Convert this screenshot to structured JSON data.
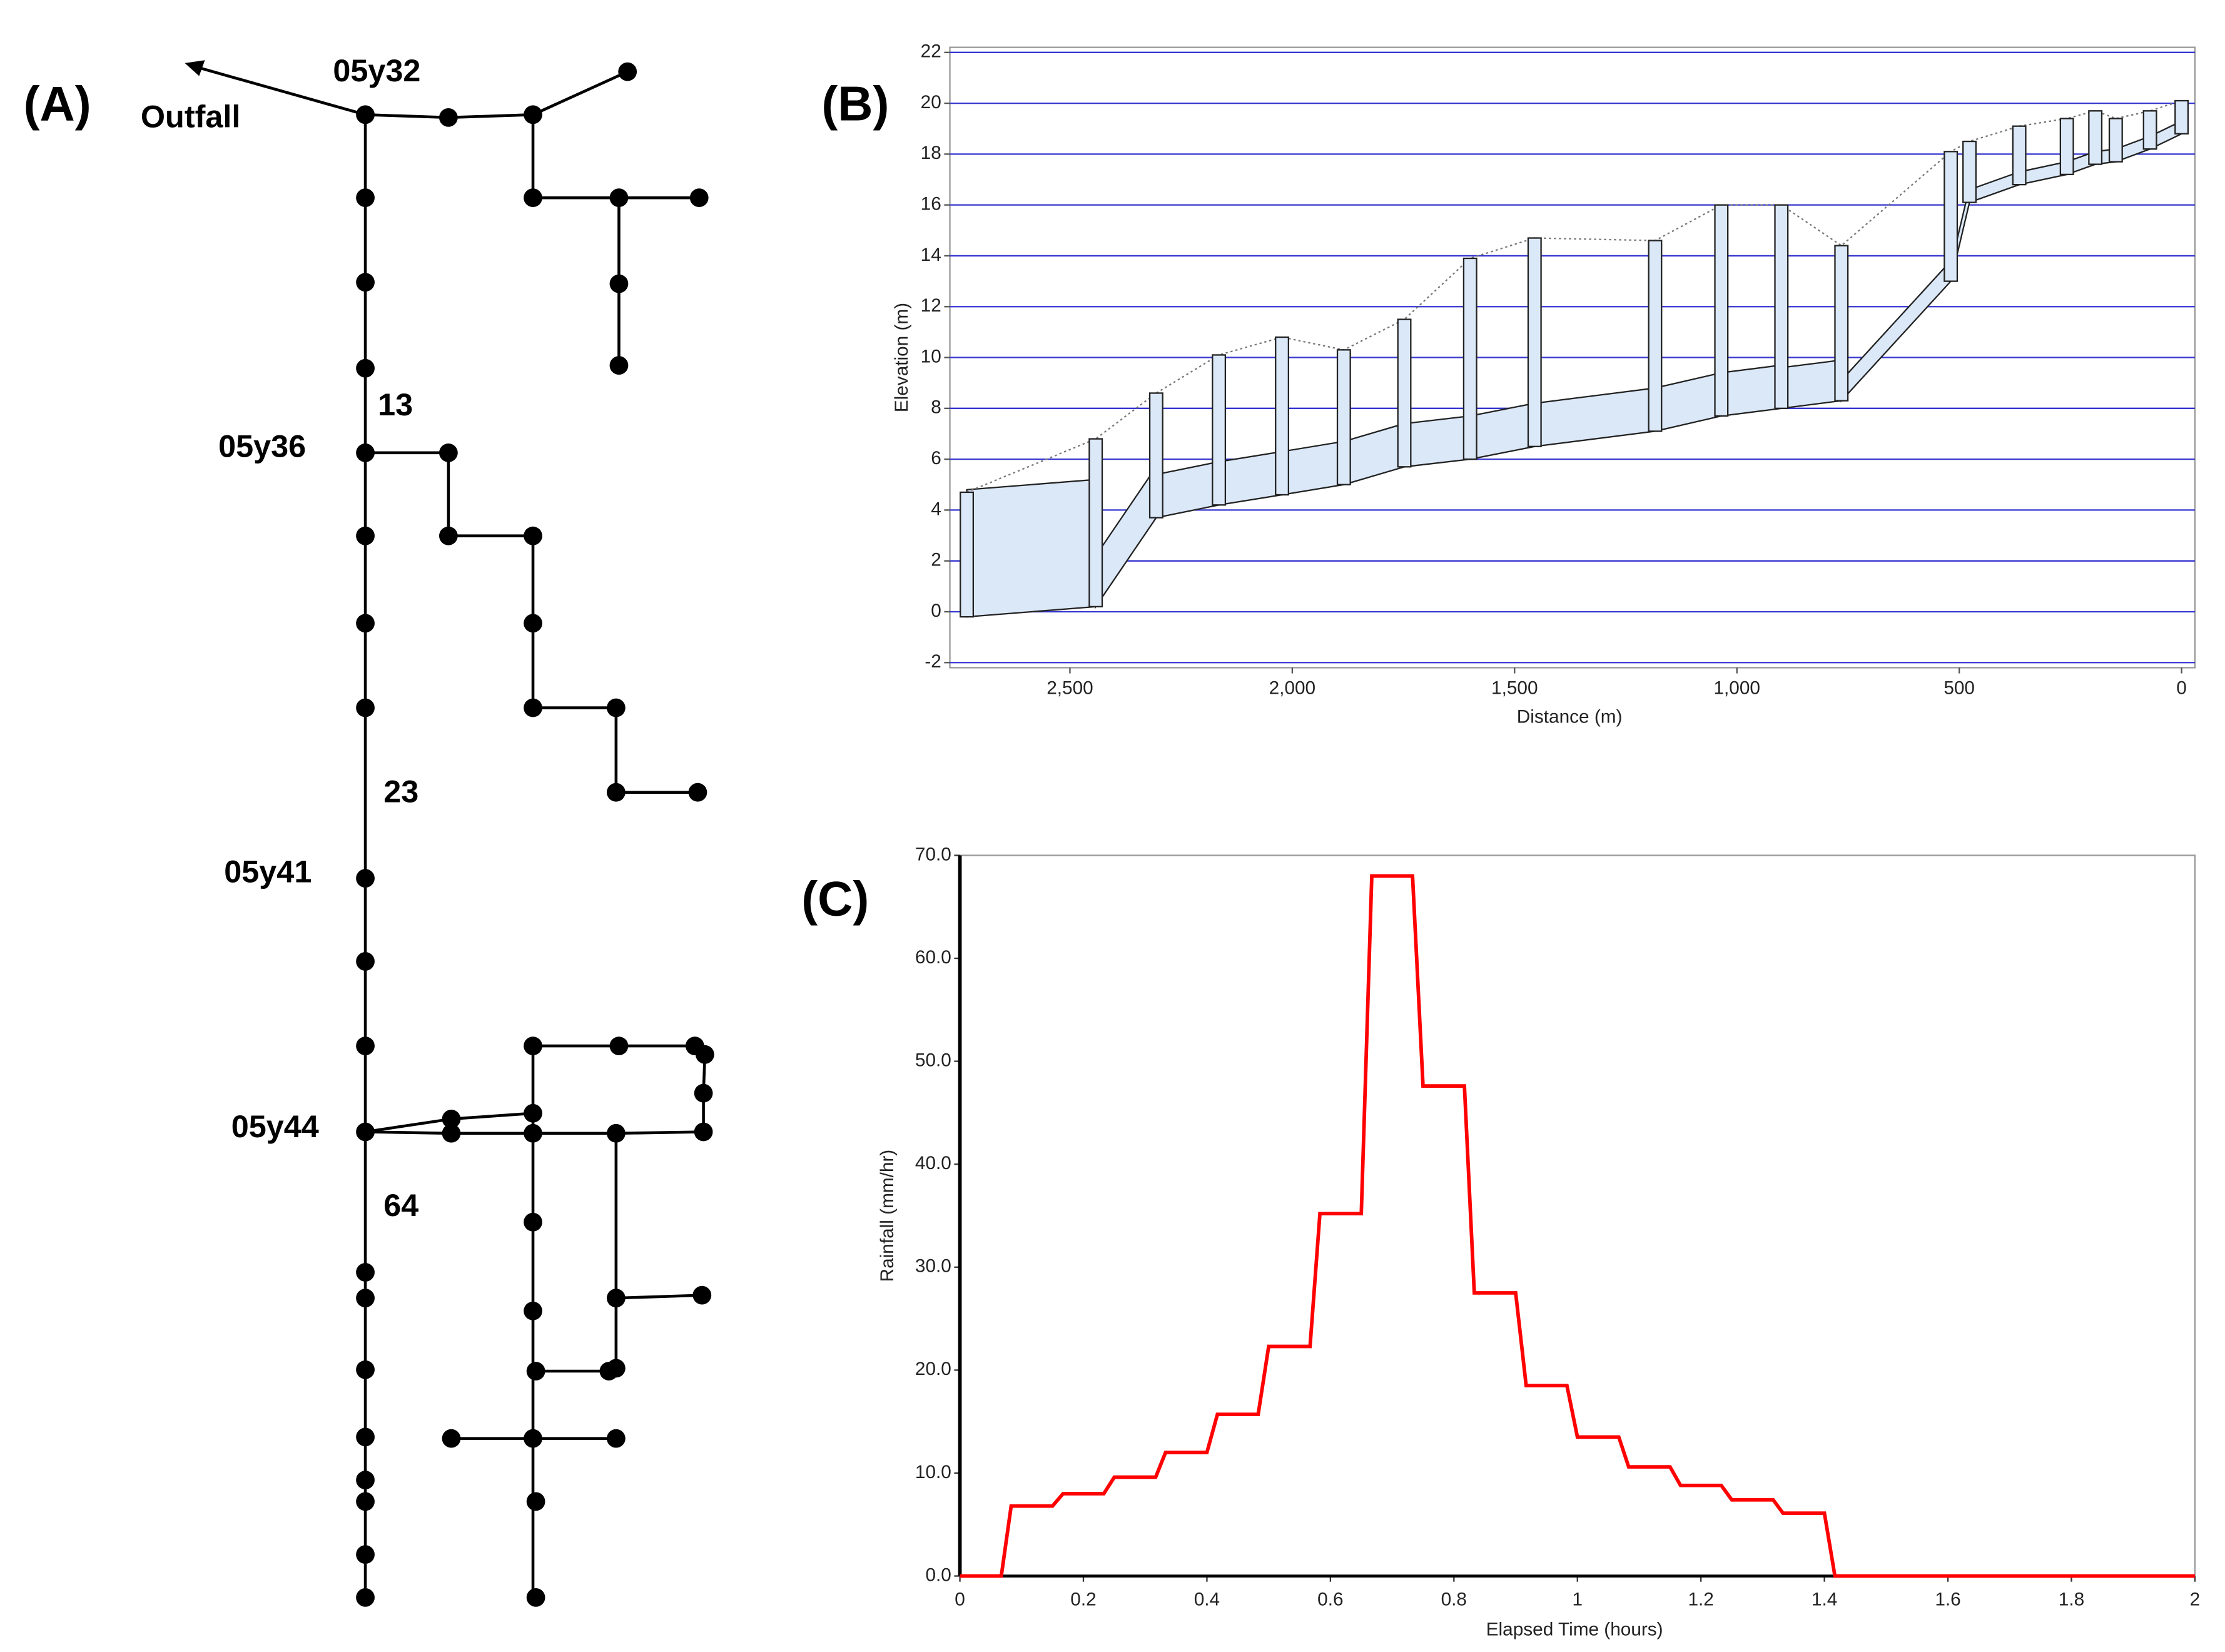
{
  "panel_labels": [
    "(A)",
    "(B)",
    "(C)"
  ],
  "diagram": {
    "labels": [
      "Outfall",
      "05y32",
      "13",
      "05y36",
      "23",
      "05y41",
      "05y44",
      "64"
    ]
  },
  "chart_data": [
    {
      "type": "profile",
      "xlabel": "Distance (m)",
      "ylabel": "Elevation (m)",
      "x": [
        2732,
        2442,
        2306,
        2165,
        2023,
        1884,
        1748,
        1600,
        1455,
        1184,
        1035,
        900,
        765,
        519,
        477,
        365,
        258,
        194,
        148,
        71,
        0
      ],
      "top": [
        4.7,
        6.8,
        8.6,
        10.1,
        10.8,
        10.3,
        11.5,
        13.9,
        14.7,
        14.6,
        16.0,
        16.0,
        14.4,
        18.1,
        18.5,
        19.1,
        19.4,
        19.7,
        19.4,
        19.7,
        20.1
      ],
      "invert": [
        -0.2,
        0.2,
        3.7,
        4.2,
        4.6,
        5.0,
        5.7,
        6.0,
        6.5,
        7.1,
        7.7,
        8.0,
        8.3,
        13.0,
        16.1,
        16.8,
        17.2,
        17.6,
        17.7,
        18.2,
        18.8
      ],
      "pipe_depth": [
        5,
        2,
        1.7,
        1.7,
        1.7,
        1.7,
        1.7,
        1.7,
        1.7,
        1.7,
        1.7,
        1.6,
        0.8,
        0.6,
        0.5,
        0.5,
        0.5,
        0.5,
        0.5,
        0.5
      ],
      "color": "#dbe8f8",
      "grid_color": "#3535d0",
      "grid": true,
      "xlim": [
        2770,
        -30
      ],
      "xticks": [
        {
          "value": 2500,
          "label": "2,500"
        },
        {
          "value": 2000,
          "label": "2,000"
        },
        {
          "value": 1500,
          "label": "1,500"
        },
        {
          "value": 1000,
          "label": "1,000"
        },
        500,
        0
      ],
      "ylim": [
        -2.2,
        22.2
      ],
      "yticks": [
        -2,
        0,
        2,
        4,
        6,
        8,
        10,
        12,
        14,
        16,
        18,
        20,
        22
      ]
    },
    {
      "type": "line",
      "xlabel": "Elapsed Time (hours)",
      "ylabel": "Rainfall (mm/hr)",
      "x": [
        0,
        0.067,
        0.083,
        0.15,
        0.167,
        0.233,
        0.25,
        0.317,
        0.333,
        0.4,
        0.417,
        0.483,
        0.5,
        0.567,
        0.583,
        0.65,
        0.667,
        0.733,
        0.75,
        0.817,
        0.833,
        0.9,
        0.917,
        0.983,
        1.0,
        1.067,
        1.083,
        1.15,
        1.167,
        1.233,
        1.25,
        1.317,
        1.333,
        1.4,
        1.417,
        2
      ],
      "values": [
        0,
        0,
        6.8,
        6.8,
        8,
        8,
        9.6,
        9.6,
        12,
        12,
        15.7,
        15.7,
        22.3,
        22.3,
        35.2,
        35.2,
        68,
        68,
        47.6,
        47.6,
        27.5,
        27.5,
        18.5,
        18.5,
        13.5,
        13.5,
        10.6,
        10.6,
        8.8,
        8.8,
        7.4,
        7.4,
        6.1,
        6.1,
        0,
        0
      ],
      "color": "#ff0000",
      "xlim": [
        0,
        2
      ],
      "xticks": [
        0,
        0.2,
        0.4,
        0.6,
        0.8,
        1,
        1.2,
        1.4,
        1.6,
        1.8,
        2
      ],
      "ylim": [
        0,
        70
      ],
      "yticks": [
        {
          "value": 0,
          "label": "0.0"
        },
        {
          "value": 10,
          "label": "10.0"
        },
        {
          "value": 20,
          "label": "20.0"
        },
        {
          "value": 30,
          "label": "30.0"
        },
        {
          "value": 40,
          "label": "40.0"
        },
        {
          "value": 50,
          "label": "50.0"
        },
        {
          "value": 60,
          "label": "60.0"
        },
        {
          "value": 70,
          "label": "70.0"
        }
      ]
    }
  ]
}
